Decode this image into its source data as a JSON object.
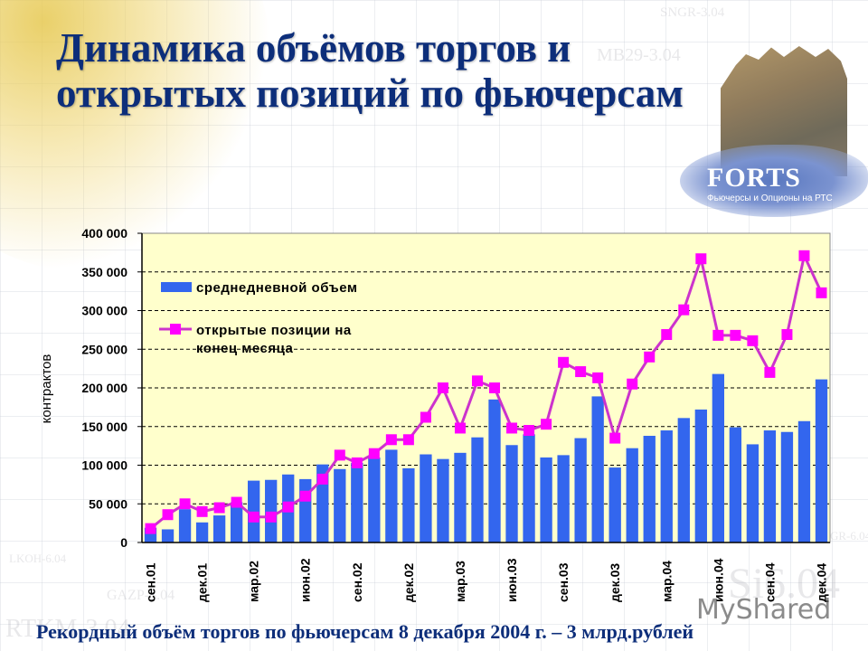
{
  "slide": {
    "title_line1": "Динамика объёмов торгов и",
    "title_line2": "открытых позиций по фьючерсам",
    "footer": "Рекордный объём торгов по фьючерсам 8 декабря 2004 г. – 3 млрд.рублей",
    "watermarks": [
      "SNGR-3.04",
      "MB29-3.04",
      "LKOH-6.04",
      "GAZP-3.04",
      "RTKM-3.04",
      "Si6.04",
      "GR-6.04"
    ],
    "logo": {
      "name": "FORTS",
      "tagline": "Фьючерсы и Опционы на РТС"
    },
    "site_watermark": "MyShared"
  },
  "colors": {
    "title": "#0d2e7a",
    "plot_bg": "#ffffcc",
    "bar": "#3366ee",
    "line": "#cc33cc",
    "marker": "#ff00ff"
  },
  "chart_data": {
    "type": "bar+line",
    "title": "Динамика объёмов торгов и открытых позиций по фьючерсам",
    "xlabel": "",
    "ylabel": "контрактов",
    "ylim": [
      0,
      400000
    ],
    "yticks": [
      0,
      50000,
      100000,
      150000,
      200000,
      250000,
      300000,
      350000,
      400000
    ],
    "ytick_labels": [
      "0",
      "50 000",
      "100 000",
      "150 000",
      "200 000",
      "250 000",
      "300 000",
      "350 000",
      "400 000"
    ],
    "grid": "horizontal dashed",
    "legend_position": "upper left inside plot",
    "categories": [
      "сен.01",
      "окт.01",
      "ноя.01",
      "дек.01",
      "янв.02",
      "фев.02",
      "мар.02",
      "апр.02",
      "май.02",
      "июн.02",
      "июл.02",
      "авг.02",
      "сен.02",
      "окт.02",
      "ноя.02",
      "дек.02",
      "янв.03",
      "фев.03",
      "мар.03",
      "апр.03",
      "май.03",
      "июн.03",
      "июл.03",
      "авг.03",
      "сен.03",
      "окт.03",
      "ноя.03",
      "дек.03",
      "янв.04",
      "фев.04",
      "мар.04",
      "апр.04",
      "май.04",
      "июн.04",
      "июл.04",
      "авг.04",
      "сен.04",
      "окт.04",
      "ноя.04",
      "дек.04"
    ],
    "xtick_labels": [
      "сен.01",
      "дек.01",
      "мар.02",
      "июн.02",
      "сен.02",
      "дек.02",
      "мар.03",
      "июн.03",
      "сен.03",
      "дек.03",
      "мар.04",
      "июн.04",
      "сен.04",
      "дек.04"
    ],
    "series": [
      {
        "name": "среднедневной объем",
        "type": "bar",
        "values": [
          19000,
          17000,
          43000,
          26000,
          35000,
          52000,
          80000,
          81000,
          88000,
          82000,
          101000,
          95000,
          103000,
          110000,
          120000,
          96000,
          114000,
          108000,
          116000,
          136000,
          185000,
          126000,
          140000,
          110000,
          113000,
          135000,
          189000,
          97000,
          122000,
          138000,
          145000,
          161000,
          172000,
          218000,
          149000,
          127000,
          145000,
          143000,
          157000,
          211000
        ]
      },
      {
        "name": "открытые позиции на конец месяца",
        "type": "line",
        "values": [
          18000,
          36000,
          50000,
          40000,
          45000,
          52000,
          33000,
          33000,
          46000,
          60000,
          82000,
          113000,
          103000,
          115000,
          133000,
          133000,
          162000,
          200000,
          148000,
          209000,
          200000,
          148000,
          145000,
          153000,
          233000,
          221000,
          213000,
          135000,
          205000,
          240000,
          269000,
          301000,
          367000,
          268000,
          268000,
          261000,
          220000,
          269000,
          371000,
          323000
        ]
      }
    ],
    "legend": [
      "среднедневной объем",
      "открытые позиции на конец месяца"
    ]
  }
}
